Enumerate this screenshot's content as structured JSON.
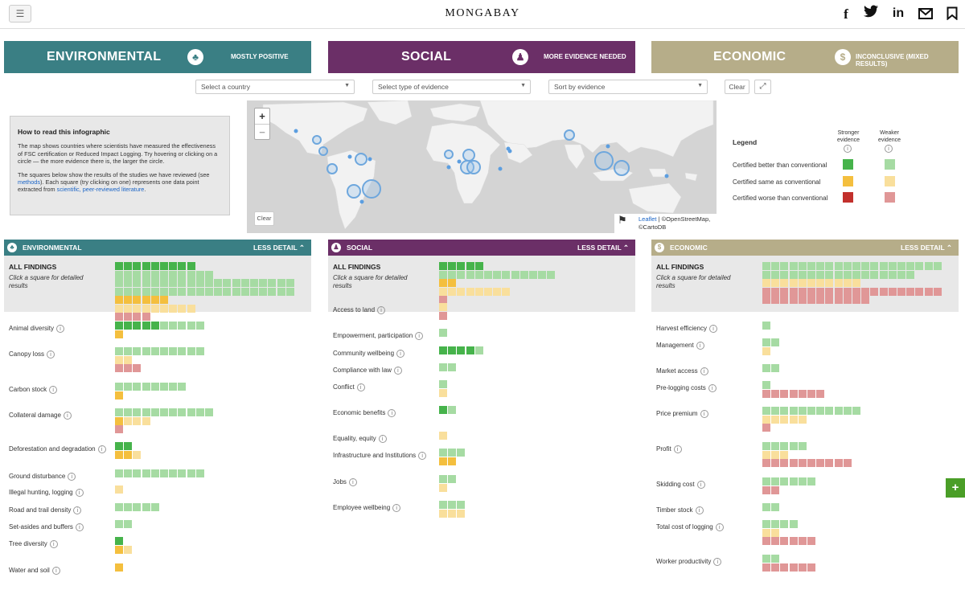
{
  "header": {
    "brand": "MONGABAY",
    "menu_icon": "hamburger-icon",
    "social": [
      "facebook-icon",
      "twitter-icon",
      "linkedin-icon",
      "email-icon",
      "bookmark-icon"
    ]
  },
  "colors": {
    "environmental": "#3a7f84",
    "social": "#6b2f67",
    "economic": "#b6ad89",
    "stronger_better": "#46b34b",
    "weaker_better": "#a6dba3",
    "stronger_same": "#f4bf3e",
    "weaker_same": "#f9df9c",
    "stronger_worse": "#c2302c",
    "weaker_worse": "#e09797"
  },
  "categories": [
    {
      "name": "ENVIRONMENTAL",
      "verdict": "MOSTLY POSITIVE",
      "icon": "tree-icon"
    },
    {
      "name": "SOCIAL",
      "verdict": "MORE EVIDENCE NEEDED",
      "icon": "person-icon"
    },
    {
      "name": "ECONOMIC",
      "verdict": "INCONCLUSIVE (MIXED RESULTS)",
      "icon": "dollar-icon"
    }
  ],
  "filters": {
    "country": "Select a country",
    "evidence": "Select type of evidence",
    "sort": "Sort by evidence",
    "clear": "Clear"
  },
  "howto": {
    "title": "How to read this infographic",
    "p1": "The map shows countries where scientists have measured the effectiveness of FSC certification or Reduced Impact Logging. Try hovering or clicking on a circle — the more evidence there is, the larger the circle.",
    "p2_a": "The squares below show the results of the studies we have reviewed (see ",
    "p2_link1": "methods",
    "p2_b": "). Each square (try clicking on one) represents one data point extracted from ",
    "p2_link2": "scientific, peer-reviewed literature",
    "p2_c": "."
  },
  "map": {
    "zoom_in": "+",
    "zoom_out": "−",
    "clear": "Clear",
    "attr_link": "Leaflet",
    "attr_text": " | ©OpenStreetMap, ©CartoDB"
  },
  "legend": {
    "title": "Legend",
    "col_strong": "Stronger evidence",
    "col_weak": "Weaker evidence",
    "rows": [
      "Certified better than conventional",
      "Certified same as conventional",
      "Certified worse than conventional"
    ]
  },
  "panels": {
    "less_detail": "LESS DETAIL",
    "all_findings": "ALL FINDINGS",
    "click_hint": "Click a square for detailed results",
    "environmental": {
      "title": "ENVIRONMENTAL",
      "all": [
        [
          "G",
          9
        ],
        [
          "g",
          11
        ],
        [
          "G",
          0
        ],
        [
          "g",
          20
        ],
        [
          "g",
          20
        ],
        [
          "Y",
          6
        ],
        [
          "y",
          9
        ],
        [
          "R",
          0
        ],
        [
          "r",
          4
        ]
      ],
      "rows": [
        {
          "label": "Animal diversity",
          "counts": [
            [
              "G",
              5
            ],
            [
              "g",
              5
            ],
            [
              "Y",
              1
            ]
          ]
        },
        {
          "label": "Canopy loss",
          "counts": [
            [
              "g",
              10
            ],
            [
              "y",
              2
            ],
            [
              "r",
              3
            ]
          ]
        },
        {
          "label": "Carbon stock",
          "counts": [
            [
              "g",
              8
            ],
            [
              "Y",
              1
            ]
          ]
        },
        {
          "label": "Collateral damage",
          "counts": [
            [
              "g",
              11
            ],
            [
              "Y",
              1
            ],
            [
              "y",
              3
            ],
            [
              "r",
              1
            ]
          ]
        },
        {
          "label": "Deforestation and degradation",
          "counts": [
            [
              "G",
              2
            ],
            [
              "Y",
              2
            ],
            [
              "y",
              1
            ],
            [
              "R",
              0
            ],
            [
              "r",
              0
            ]
          ]
        },
        {
          "label": "Ground disturbance",
          "counts": [
            [
              "g",
              10
            ]
          ]
        },
        {
          "label": "Illegal hunting, logging",
          "counts": [
            [
              "y",
              1
            ]
          ]
        },
        {
          "label": "Road and trail density",
          "counts": [
            [
              "g",
              5
            ]
          ]
        },
        {
          "label": "Set-asides and buffers",
          "counts": [
            [
              "g",
              2
            ]
          ]
        },
        {
          "label": "Tree diversity",
          "counts": [
            [
              "G",
              1
            ],
            [
              "Y",
              1
            ],
            [
              "y",
              1
            ]
          ]
        },
        {
          "label": "Water and soil",
          "counts": [
            [
              "Y",
              1
            ]
          ]
        }
      ]
    },
    "social": {
      "title": "SOCIAL",
      "all": [
        [
          "G",
          5
        ],
        [
          "g",
          13
        ],
        [
          "Y",
          2
        ],
        [
          "y",
          8
        ],
        [
          "r",
          1
        ]
      ],
      "rows": [
        {
          "label": "Access to land",
          "counts": [
            [
              "y",
              1
            ],
            [
              "r",
              1
            ]
          ]
        },
        {
          "label": "Empowerment, participation",
          "counts": [
            [
              "g",
              1
            ]
          ]
        },
        {
          "label": "Community wellbeing",
          "counts": [
            [
              "G",
              4
            ],
            [
              "g",
              1
            ]
          ]
        },
        {
          "label": "Compliance with law",
          "counts": [
            [
              "g",
              2
            ]
          ]
        },
        {
          "label": "Conflict",
          "counts": [
            [
              "g",
              1
            ],
            [
              "y",
              1
            ]
          ]
        },
        {
          "label": "Economic benefits",
          "counts": [
            [
              "G",
              1
            ],
            [
              "g",
              1
            ]
          ]
        },
        {
          "label": "Equality, equity",
          "counts": [
            [
              "y",
              1
            ]
          ]
        },
        {
          "label": "Infrastructure and Institutions",
          "counts": [
            [
              "g",
              3
            ],
            [
              "Y",
              2
            ]
          ]
        },
        {
          "label": "Jobs",
          "counts": [
            [
              "g",
              2
            ],
            [
              "y",
              1
            ]
          ]
        },
        {
          "label": "Employee wellbeing",
          "counts": [
            [
              "g",
              3
            ],
            [
              "y",
              3
            ]
          ]
        }
      ]
    },
    "economic": {
      "title": "ECONOMIC",
      "all": [
        [
          "g",
          20
        ],
        [
          "g",
          17
        ],
        [
          "y",
          11
        ],
        [
          "r",
          20
        ],
        [
          "r",
          12
        ]
      ],
      "rows": [
        {
          "label": "Harvest efficiency",
          "counts": [
            [
              "g",
              1
            ]
          ]
        },
        {
          "label": "Management",
          "counts": [
            [
              "g",
              2
            ],
            [
              "y",
              1
            ]
          ]
        },
        {
          "label": "Market access",
          "counts": [
            [
              "g",
              2
            ]
          ]
        },
        {
          "label": "Pre-logging costs",
          "counts": [
            [
              "g",
              1
            ],
            [
              "r",
              7
            ]
          ]
        },
        {
          "label": "Price premium",
          "counts": [
            [
              "g",
              11
            ],
            [
              "y",
              5
            ],
            [
              "r",
              1
            ]
          ]
        },
        {
          "label": "Profit",
          "counts": [
            [
              "g",
              5
            ],
            [
              "y",
              3
            ],
            [
              "r",
              10
            ]
          ]
        },
        {
          "label": "Skidding cost",
          "counts": [
            [
              "g",
              6
            ],
            [
              "r",
              2
            ]
          ]
        },
        {
          "label": "Timber stock",
          "counts": [
            [
              "g",
              2
            ]
          ]
        },
        {
          "label": "Total cost of logging",
          "counts": [
            [
              "g",
              4
            ],
            [
              "y",
              2
            ],
            [
              "r",
              6
            ]
          ]
        },
        {
          "label": "Worker productivity",
          "counts": [
            [
              "g",
              2
            ],
            [
              "r",
              6
            ]
          ]
        }
      ]
    }
  }
}
